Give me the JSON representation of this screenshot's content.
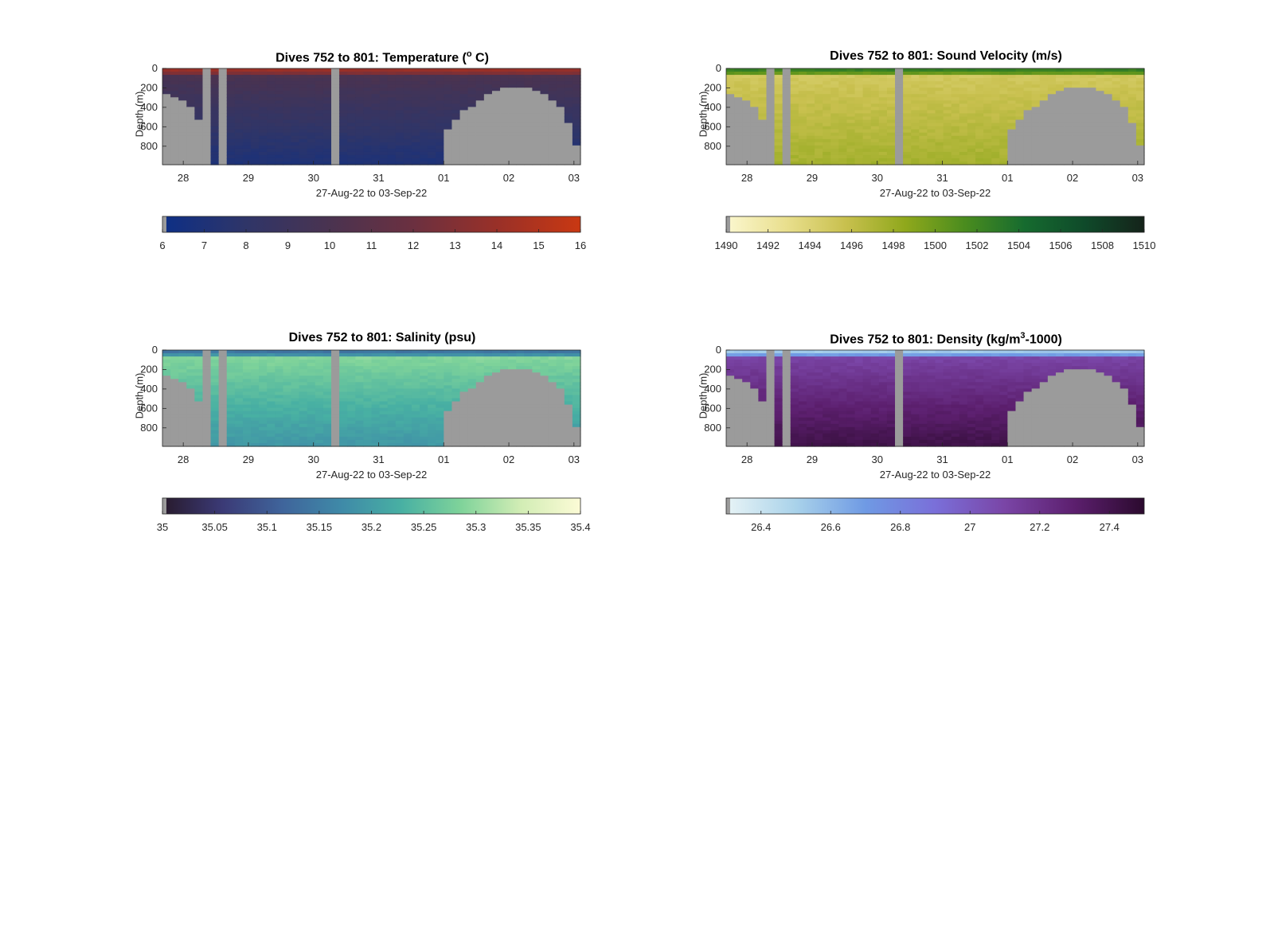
{
  "figure": {
    "x_axis_label": "27-Aug-22 to 03-Sep-22",
    "y_axis_label": "Depth (m)"
  },
  "chart_data": [
    {
      "type": "heatmap",
      "title": "Dives 752 to 801: Temperature (",
      "title_sup": "o",
      "title_tail": " C)",
      "xlabel": "27-Aug-22 to 03-Sep-22",
      "ylabel": "Depth (m)",
      "x_ticks": [
        "28",
        "29",
        "30",
        "31",
        "01",
        "02",
        "03"
      ],
      "y_ticks": [
        0,
        200,
        400,
        600,
        800
      ],
      "ylim": [
        0,
        990
      ],
      "colorbar_ticks": [
        "6",
        "7",
        "8",
        "9",
        "10",
        "11",
        "12",
        "13",
        "14",
        "15",
        "16"
      ],
      "colorbar_range": [
        6,
        16
      ],
      "colormap": [
        "#0d2f86",
        "#2f3568",
        "#4a3350",
        "#6b3040",
        "#993028",
        "#c93812"
      ],
      "surface_value": 14.5,
      "mid_value": 10.0,
      "deep_value": 7.0,
      "bottom_contour_m": [
        280,
        300,
        320,
        400,
        540,
        990,
        990,
        990,
        990,
        990,
        990,
        990,
        990,
        990,
        990,
        990,
        990,
        990,
        990,
        990,
        990,
        990,
        990,
        990,
        990,
        990,
        990,
        990,
        990,
        990,
        990,
        990,
        990,
        990,
        990,
        640,
        520,
        440,
        380,
        330,
        280,
        240,
        210,
        200,
        200,
        210,
        240,
        280,
        330,
        400,
        560,
        790
      ]
    },
    {
      "type": "heatmap",
      "title": "Dives 752 to 801: Sound Velocity (m/s)",
      "title_sup": "",
      "title_tail": "",
      "xlabel": "27-Aug-22 to 03-Sep-22",
      "ylabel": "Depth (m)",
      "x_ticks": [
        "28",
        "29",
        "30",
        "31",
        "01",
        "02",
        "03"
      ],
      "y_ticks": [
        0,
        200,
        400,
        600,
        800
      ],
      "ylim": [
        0,
        990
      ],
      "colorbar_ticks": [
        "1490",
        "1492",
        "1494",
        "1496",
        "1498",
        "1500",
        "1502",
        "1504",
        "1506",
        "1508",
        "1510"
      ],
      "colorbar_range": [
        1490,
        1510
      ],
      "colormap": [
        "#fbf7cf",
        "#e9df8e",
        "#c8c04e",
        "#8fa81c",
        "#4a8c1e",
        "#166b2f",
        "#0f4a2a",
        "#15231a"
      ],
      "surface_value": 1503.5,
      "mid_value": 1495.0,
      "deep_value": 1497.5,
      "bottom_contour_m": [
        280,
        300,
        320,
        400,
        540,
        990,
        990,
        990,
        990,
        990,
        990,
        990,
        990,
        990,
        990,
        990,
        990,
        990,
        990,
        990,
        990,
        990,
        990,
        990,
        990,
        990,
        990,
        990,
        990,
        990,
        990,
        990,
        990,
        990,
        990,
        640,
        520,
        440,
        380,
        330,
        280,
        240,
        210,
        200,
        200,
        210,
        240,
        280,
        330,
        400,
        560,
        790
      ]
    },
    {
      "type": "heatmap",
      "title": "Dives 752 to 801: Salinity (psu)",
      "title_sup": "",
      "title_tail": "",
      "xlabel": "27-Aug-22 to 03-Sep-22",
      "ylabel": "Depth (m)",
      "x_ticks": [
        "28",
        "29",
        "30",
        "31",
        "01",
        "02",
        "03"
      ],
      "y_ticks": [
        0,
        200,
        400,
        600,
        800
      ],
      "ylim": [
        0,
        990
      ],
      "colorbar_ticks": [
        "35",
        "35.05",
        "35.1",
        "35.15",
        "35.2",
        "35.25",
        "35.3",
        "35.35",
        "35.4"
      ],
      "colorbar_range": [
        35,
        35.4
      ],
      "colormap": [
        "#281a2c",
        "#3b3a76",
        "#3f649b",
        "#3f8aa8",
        "#48b0a3",
        "#7fd39a",
        "#d2edb5",
        "#fcfbd6"
      ],
      "surface_value": 35.12,
      "mid_value": 35.29,
      "deep_value": 35.19,
      "bottom_contour_m": [
        280,
        300,
        320,
        400,
        540,
        990,
        990,
        990,
        990,
        990,
        990,
        990,
        990,
        990,
        990,
        990,
        990,
        990,
        990,
        990,
        990,
        990,
        990,
        990,
        990,
        990,
        990,
        990,
        990,
        990,
        990,
        990,
        990,
        990,
        990,
        640,
        520,
        440,
        380,
        330,
        280,
        240,
        210,
        200,
        200,
        210,
        240,
        280,
        330,
        400,
        560,
        790
      ]
    },
    {
      "type": "heatmap",
      "title": "Dives 752 to 801: Density (kg/m",
      "title_sup": "3",
      "title_tail": "-1000)",
      "xlabel": "27-Aug-22 to 03-Sep-22",
      "ylabel": "Depth (m)",
      "x_ticks": [
        "28",
        "29",
        "30",
        "31",
        "01",
        "02",
        "03"
      ],
      "y_ticks": [
        0,
        200,
        400,
        600,
        800
      ],
      "ylim": [
        0,
        990
      ],
      "colorbar_ticks": [
        "26.4",
        "26.6",
        "26.8",
        "27",
        "27.2",
        "27.4"
      ],
      "colorbar_range": [
        26.3,
        27.5
      ],
      "colormap": [
        "#e8f4f6",
        "#a9d2ea",
        "#6f9ae4",
        "#7a6fd9",
        "#7a45a6",
        "#5c1f6e",
        "#2b0a2e"
      ],
      "surface_value": 26.45,
      "mid_value": 27.1,
      "deep_value": 27.42,
      "bottom_contour_m": [
        280,
        300,
        320,
        400,
        540,
        990,
        990,
        990,
        990,
        990,
        990,
        990,
        990,
        990,
        990,
        990,
        990,
        990,
        990,
        990,
        990,
        990,
        990,
        990,
        990,
        990,
        990,
        990,
        990,
        990,
        990,
        990,
        990,
        990,
        990,
        640,
        520,
        440,
        380,
        330,
        280,
        240,
        210,
        200,
        200,
        210,
        240,
        280,
        330,
        400,
        560,
        790
      ]
    }
  ],
  "gaps": {
    "mask_color": "#9b9b9b",
    "gap_columns": [
      5,
      7,
      21
    ]
  }
}
